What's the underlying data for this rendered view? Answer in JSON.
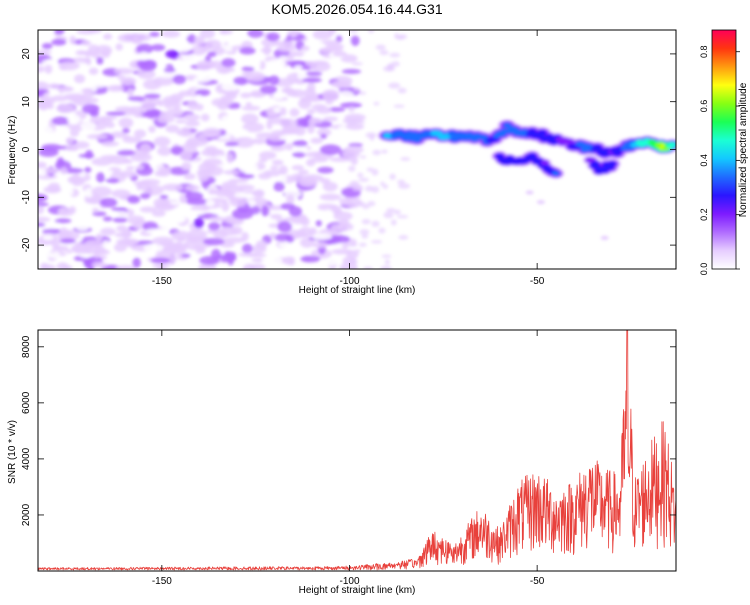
{
  "title": "KOM5.2026.054.16.44.G31",
  "chart_data": [
    {
      "type": "heatmap",
      "name": "spectrogram",
      "xlabel": "Height of straight line (km)",
      "ylabel": "Frequency (Hz)",
      "xlim": [
        -183,
        -13
      ],
      "ylim": [
        -25,
        25
      ],
      "xticks": [
        -150,
        -100,
        -50
      ],
      "yticks": [
        -20,
        -10,
        0,
        10,
        20
      ],
      "xtick_labels": [
        "-150",
        "-100",
        "-50"
      ],
      "ytick_labels": [
        "-20",
        "-10",
        "0",
        "10",
        "20"
      ],
      "colorbar": {
        "label": "Normalized spectral amplitude",
        "range": [
          0,
          0.88
        ],
        "ticks": [
          0,
          0.2,
          0.4,
          0.6,
          0.8
        ],
        "tick_labels": [
          "0.0",
          "0.2",
          "0.4",
          "0.6",
          "0.8"
        ],
        "colors": [
          "#ffffff",
          "#e6cdff",
          "#b06cff",
          "#7d1bff",
          "#2b16ff",
          "#1f6bff",
          "#13c8ff",
          "#1bffd4",
          "#1bff55",
          "#87ff13",
          "#ffff10",
          "#ff9a10",
          "#ff3510",
          "#ff0058"
        ]
      },
      "ridge": [
        {
          "x": -90,
          "f": 3.3,
          "v": 0.5
        },
        {
          "x": -86,
          "f": 3.1,
          "v": 0.45
        },
        {
          "x": -82,
          "f": 2.6,
          "v": 0.42
        },
        {
          "x": -78,
          "f": 3.0,
          "v": 0.48
        },
        {
          "x": -74,
          "f": 3.1,
          "v": 0.5
        },
        {
          "x": -70,
          "f": 2.6,
          "v": 0.44
        },
        {
          "x": -66,
          "f": 2.4,
          "v": 0.42
        },
        {
          "x": -62,
          "f": 1.5,
          "v": 0.38
        },
        {
          "x": -58,
          "f": 4.5,
          "v": 0.42
        },
        {
          "x": -54,
          "f": 3.5,
          "v": 0.4
        },
        {
          "x": -50,
          "f": 3.2,
          "v": 0.38
        },
        {
          "x": -46,
          "f": 2.4,
          "v": 0.32
        },
        {
          "x": -42,
          "f": 1.2,
          "v": 0.28
        },
        {
          "x": -38,
          "f": 0.6,
          "v": 0.42
        },
        {
          "x": -34,
          "f": 0.0,
          "v": 0.38
        },
        {
          "x": -30,
          "f": -1.0,
          "v": 0.3
        },
        {
          "x": -26,
          "f": 0.8,
          "v": 0.42
        },
        {
          "x": -22,
          "f": 1.6,
          "v": 0.6
        },
        {
          "x": -18,
          "f": 1.2,
          "v": 0.7
        },
        {
          "x": -16,
          "f": 0.2,
          "v": 0.85
        },
        {
          "x": -14,
          "f": 1.0,
          "v": 0.6
        }
      ],
      "ridge_lower": [
        {
          "x": -60,
          "f": -1.5,
          "v": 0.34
        },
        {
          "x": -56,
          "f": -3.0,
          "v": 0.32
        },
        {
          "x": -52,
          "f": -1.2,
          "v": 0.36
        },
        {
          "x": -48,
          "f": -3.2,
          "v": 0.3
        },
        {
          "x": -45,
          "f": -5.0,
          "v": 0.4
        },
        {
          "x": -36,
          "f": -2.5,
          "v": 0.3
        },
        {
          "x": -33,
          "f": -4.5,
          "v": 0.32
        },
        {
          "x": -30,
          "f": -3.0,
          "v": 0.36
        }
      ]
    },
    {
      "type": "line",
      "name": "snr",
      "xlabel": "Height of straight line (km)",
      "ylabel": "SNR (10 * v/v)",
      "xlim": [
        -183,
        -13
      ],
      "ylim": [
        0,
        8600
      ],
      "xticks": [
        -150,
        -100,
        -50
      ],
      "yticks": [
        2000,
        4000,
        6000,
        8000
      ],
      "xtick_labels": [
        "-150",
        "-100",
        "-50"
      ],
      "ytick_labels": [
        "2000",
        "4000",
        "6000",
        "8000"
      ],
      "color": "#e8413c",
      "envelope": [
        {
          "x": -183,
          "y": 120
        },
        {
          "x": -150,
          "y": 140
        },
        {
          "x": -110,
          "y": 160
        },
        {
          "x": -100,
          "y": 180
        },
        {
          "x": -90,
          "y": 300
        },
        {
          "x": -82,
          "y": 450
        },
        {
          "x": -78,
          "y": 1500
        },
        {
          "x": -72,
          "y": 1000
        },
        {
          "x": -65,
          "y": 2400
        },
        {
          "x": -60,
          "y": 1500
        },
        {
          "x": -55,
          "y": 3200
        },
        {
          "x": -50,
          "y": 3700
        },
        {
          "x": -45,
          "y": 3000
        },
        {
          "x": -40,
          "y": 3300
        },
        {
          "x": -36,
          "y": 4200
        },
        {
          "x": -32,
          "y": 3700
        },
        {
          "x": -28,
          "y": 3500
        },
        {
          "x": -26,
          "y": 8600
        },
        {
          "x": -24,
          "y": 3400
        },
        {
          "x": -20,
          "y": 4600
        },
        {
          "x": -16,
          "y": 5500
        },
        {
          "x": -13,
          "y": 3000
        }
      ]
    }
  ]
}
